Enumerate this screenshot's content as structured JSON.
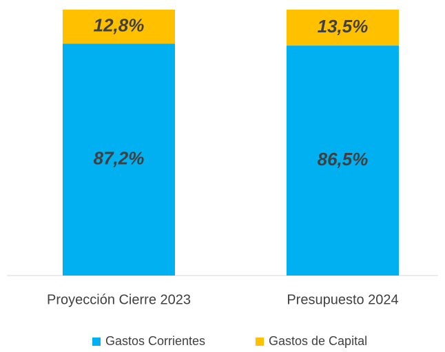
{
  "chart_data": {
    "type": "stacked_bar",
    "categories": [
      "Proyección Cierre 2023",
      "Presupuesto 2024"
    ],
    "series": [
      {
        "name": "Gastos Corrientes",
        "color": "#00b0f0",
        "values": [
          87.2,
          86.5
        ],
        "value_labels": [
          "87,2%",
          "86,5%"
        ]
      },
      {
        "name": "Gastos de Capital",
        "color": "#ffc000",
        "values": [
          12.8,
          13.5
        ],
        "value_labels": [
          "12,8%",
          "13,5%"
        ]
      }
    ],
    "ylim": [
      0,
      100
    ],
    "legend": "bottom"
  }
}
